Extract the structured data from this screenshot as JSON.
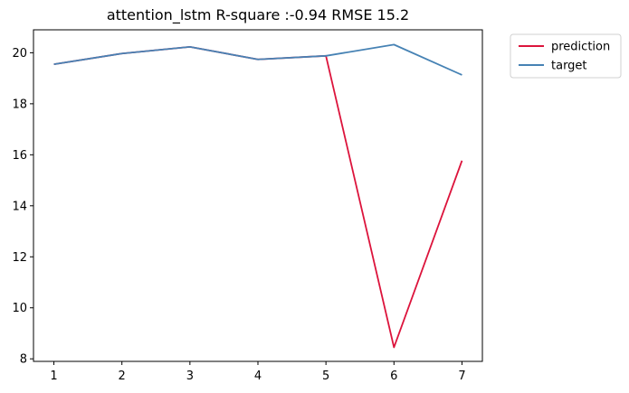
{
  "chart_data": {
    "type": "line",
    "title": "attention_lstm R-square :-0.94 RMSE 15.2",
    "xlabel": "",
    "ylabel": "",
    "x": [
      1,
      2,
      3,
      4,
      5,
      6,
      7
    ],
    "xlim": [
      0.7,
      7.3
    ],
    "ylim": [
      7.9,
      20.9
    ],
    "xticks": [
      1,
      2,
      3,
      4,
      5,
      6,
      7
    ],
    "yticks": [
      8,
      10,
      12,
      14,
      16,
      18,
      20
    ],
    "grid": false,
    "legend_position": "outside-top-right",
    "series": [
      {
        "name": "prediction",
        "color": "#dc143c",
        "values": [
          19.55,
          19.97,
          20.23,
          19.74,
          19.88,
          8.45,
          15.77
        ]
      },
      {
        "name": "target",
        "color": "#4682b4",
        "values": [
          19.55,
          19.97,
          20.23,
          19.74,
          19.88,
          20.32,
          19.13
        ]
      }
    ]
  }
}
